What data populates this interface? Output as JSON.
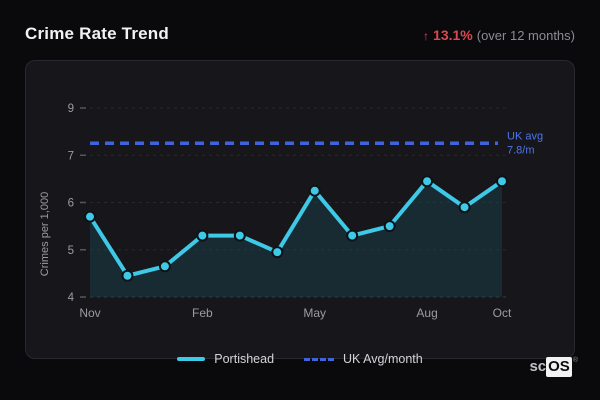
{
  "header": {
    "title": "Crime Rate Trend",
    "trend_arrow": "↑",
    "trend_value": "13.1%",
    "trend_period": "(over 12 months)"
  },
  "chart_data": {
    "type": "line",
    "title": "Crime Rate Trend",
    "xlabel": "",
    "ylabel": "Crimes per 1,000",
    "ylim": [
      4,
      9
    ],
    "grid": true,
    "legend_position": "bottom",
    "y_tick_labels": [
      "4",
      "5",
      "6",
      "7",
      "9"
    ],
    "x_tick_labels": [
      "Nov",
      "Feb",
      "May",
      "Aug",
      "Oct"
    ],
    "x_tick_indices": [
      0,
      3,
      6,
      9,
      11
    ],
    "point_count": 12,
    "series": [
      {
        "name": "Portishead",
        "style": "solid",
        "color": "#3ec9e6",
        "values": [
          5.7,
          4.45,
          4.65,
          5.3,
          5.3,
          4.95,
          6.25,
          5.3,
          5.5,
          6.45,
          5.9,
          6.45
        ]
      },
      {
        "name": "UK Avg/month",
        "style": "dashed",
        "color": "#3e63dd",
        "value": 7.8
      }
    ],
    "reference_line": {
      "value": 7.8,
      "label_line1": "UK avg",
      "label_line2": "7.8/m",
      "color": "#3e63dd"
    }
  },
  "legend": {
    "items": [
      {
        "label": "Portishead",
        "swatch": "solid-cyan-line"
      },
      {
        "label": "UK Avg/month",
        "swatch": "dashed-blue-line"
      }
    ]
  },
  "logo": {
    "prefix": "sc",
    "suffix": "OS",
    "registered": "®"
  },
  "colors": {
    "page_bg": "#0a0a0d",
    "card_bg": "#17171b",
    "card_border": "#28282e",
    "accent_cyan": "#3ec9e6",
    "accent_blue": "#3e63dd",
    "trend_red": "#d9494f",
    "area_fill": "#1d4450",
    "grid_line": "#36363d",
    "text_muted": "#9b9ba1"
  }
}
